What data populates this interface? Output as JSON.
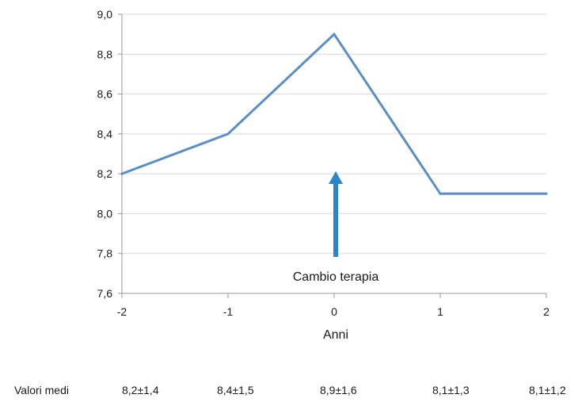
{
  "chart_data": {
    "type": "line",
    "x": [
      -2,
      -1,
      0,
      1,
      2
    ],
    "series": [
      {
        "values": [
          8.2,
          8.4,
          8.9,
          8.1,
          8.1
        ],
        "color": "#5b8ec4"
      }
    ],
    "xlabel": "Anni",
    "ylabel": "",
    "xlim": [
      -2,
      2
    ],
    "ylim": [
      7.6,
      9.0
    ],
    "x_ticks": [
      "-2",
      "-1",
      "0",
      "1",
      "2"
    ],
    "y_ticks": [
      "7,6",
      "7,8",
      "8,0",
      "8,2",
      "8,4",
      "8,6",
      "8,8",
      "9,0"
    ],
    "grid": "horizontal",
    "annotation": {
      "text": "Cambio terapia",
      "x": 0,
      "arrow_color": "#2a86c9"
    }
  },
  "means_table": {
    "label": "Valori medi",
    "values": [
      "8,2±1,4",
      "8,4±1,5",
      "8,9±1,6",
      "8,1±1,3",
      "8,1±1,2"
    ]
  }
}
